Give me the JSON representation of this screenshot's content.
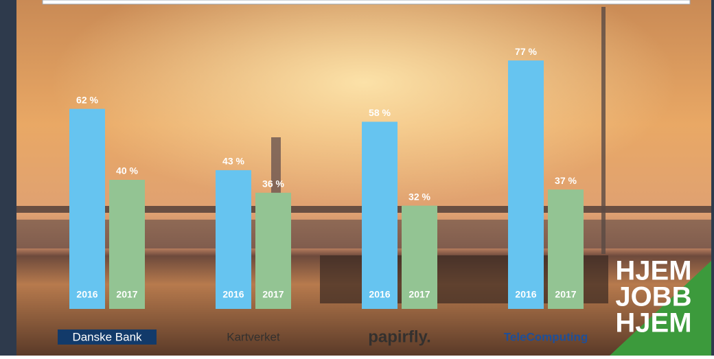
{
  "chart_data": {
    "type": "bar",
    "categories": [
      "Danske Bank",
      "Kartverket",
      "papirfly.",
      "TeleComputing"
    ],
    "series": [
      {
        "name": "2016",
        "color": "#66c4f0",
        "values": [
          62,
          43,
          58,
          77
        ],
        "value_labels": [
          "62 %",
          "43 %",
          "58 %",
          "77 %"
        ]
      },
      {
        "name": "2017",
        "color": "#93c493",
        "values": [
          40,
          36,
          32,
          37
        ],
        "value_labels": [
          "40 %",
          "36 %",
          "32 %",
          "37 %"
        ]
      }
    ]
  },
  "brand_lines": [
    "HJEM",
    "JOBB",
    "HJEM"
  ]
}
